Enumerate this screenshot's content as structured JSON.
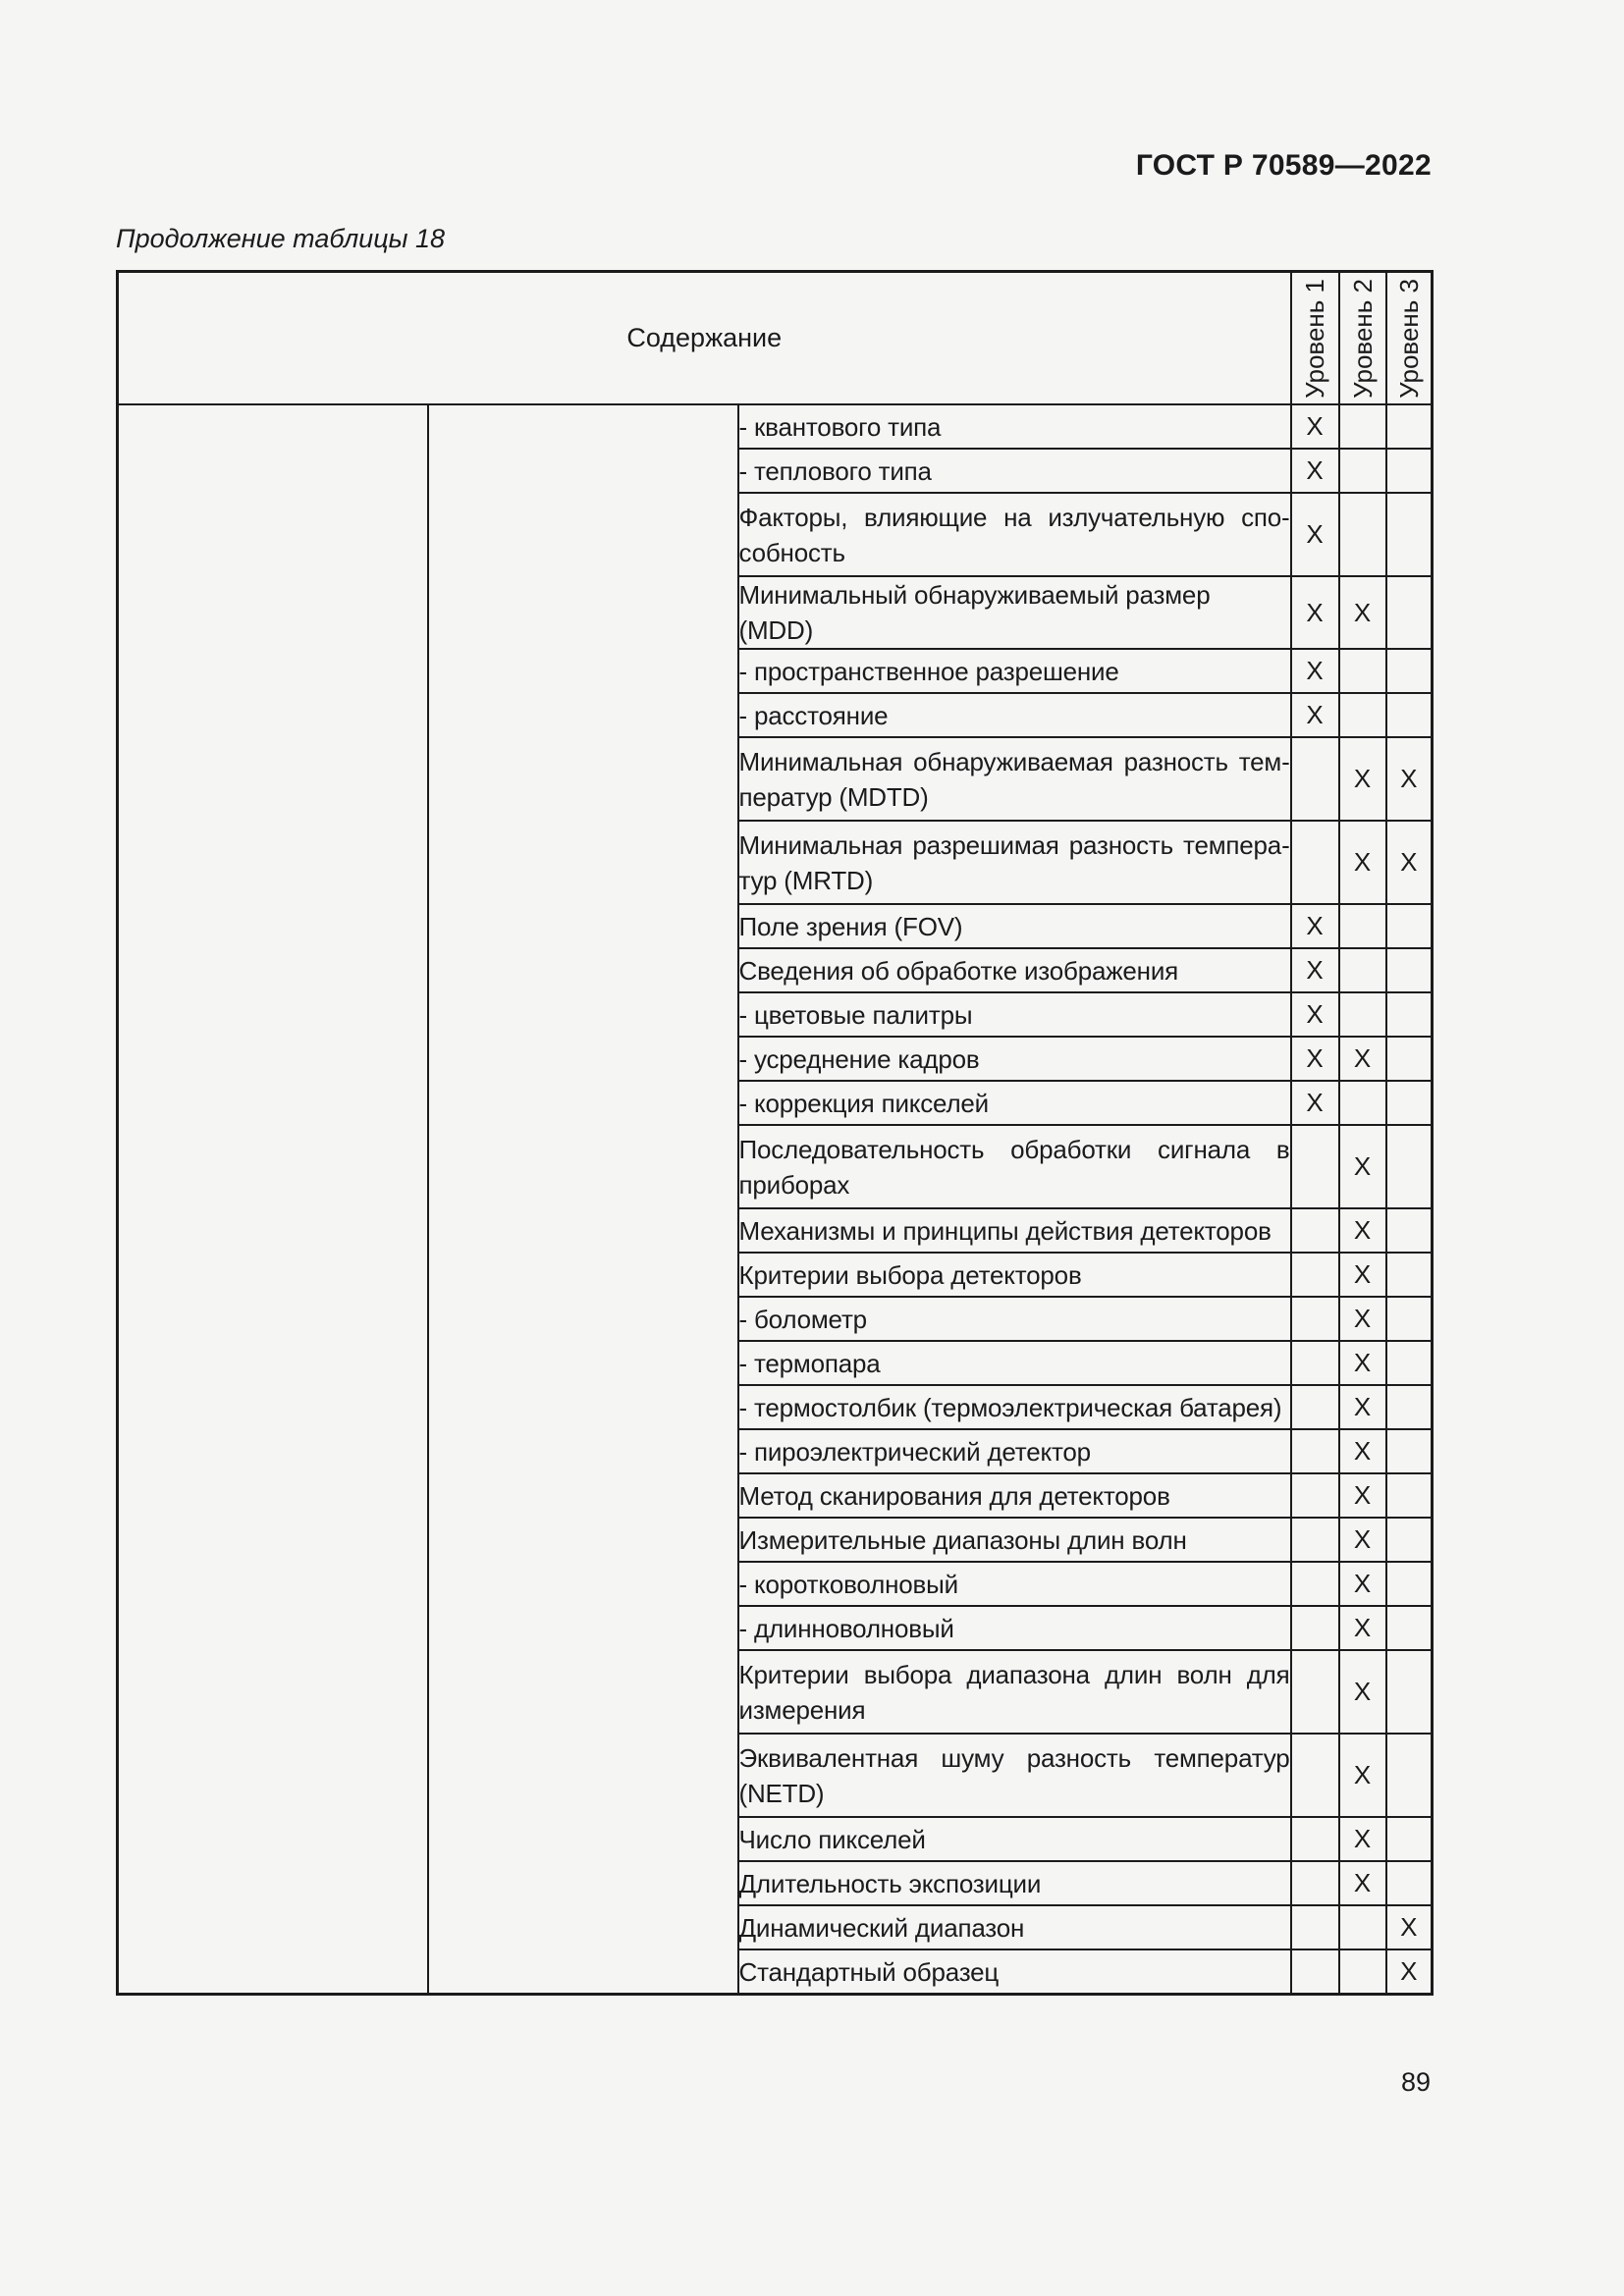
{
  "page": {
    "doc_header": "ГОСТ Р 70589—2022",
    "caption": "Продолжение таблицы 18",
    "page_number": "89"
  },
  "table": {
    "content_header": "Содержание",
    "level_headers": [
      "Уровень 1",
      "Уровень 2",
      "Уровень 3"
    ],
    "mark": "X",
    "rows": [
      {
        "lines": [
          "- квантового типа"
        ],
        "levels": [
          1,
          0,
          0
        ]
      },
      {
        "lines": [
          "- теплового типа"
        ],
        "levels": [
          1,
          0,
          0
        ]
      },
      {
        "lines": [
          "Факторы, влияющие на излучательную спо-",
          "собность"
        ],
        "levels": [
          1,
          0,
          0
        ]
      },
      {
        "lines": [
          "Минимальный обнаруживаемый размер (MDD)"
        ],
        "levels": [
          1,
          1,
          0
        ]
      },
      {
        "lines": [
          "- пространственное разрешение"
        ],
        "levels": [
          1,
          0,
          0
        ]
      },
      {
        "lines": [
          "- расстояние"
        ],
        "levels": [
          1,
          0,
          0
        ]
      },
      {
        "lines": [
          "Минимальная обнаруживаемая разность тем-",
          "ператур (MDTD)"
        ],
        "levels": [
          0,
          1,
          1
        ]
      },
      {
        "lines": [
          "Минимальная разрешимая разность темпера-",
          "тур (MRTD)"
        ],
        "levels": [
          0,
          1,
          1
        ]
      },
      {
        "lines": [
          "Поле зрения (FOV)"
        ],
        "levels": [
          1,
          0,
          0
        ]
      },
      {
        "lines": [
          "Сведения об обработке изображения"
        ],
        "levels": [
          1,
          0,
          0
        ]
      },
      {
        "lines": [
          "- цветовые палитры"
        ],
        "levels": [
          1,
          0,
          0
        ]
      },
      {
        "lines": [
          "- усреднение кадров"
        ],
        "levels": [
          1,
          1,
          0
        ]
      },
      {
        "lines": [
          "- коррекция пикселей"
        ],
        "levels": [
          1,
          0,
          0
        ]
      },
      {
        "lines": [
          "Последовательность обработки сигнала в",
          "приборах"
        ],
        "levels": [
          0,
          1,
          0
        ]
      },
      {
        "lines": [
          "Механизмы и принципы действия детекторов"
        ],
        "levels": [
          0,
          1,
          0
        ]
      },
      {
        "lines": [
          "Критерии выбора детекторов"
        ],
        "levels": [
          0,
          1,
          0
        ]
      },
      {
        "lines": [
          "- болометр"
        ],
        "levels": [
          0,
          1,
          0
        ]
      },
      {
        "lines": [
          "- термопара"
        ],
        "levels": [
          0,
          1,
          0
        ]
      },
      {
        "lines": [
          "- термостолбик (термоэлектрическая батарея)"
        ],
        "levels": [
          0,
          1,
          0
        ]
      },
      {
        "lines": [
          "- пироэлектрический детектор"
        ],
        "levels": [
          0,
          1,
          0
        ]
      },
      {
        "lines": [
          "Метод сканирования для детекторов"
        ],
        "levels": [
          0,
          1,
          0
        ]
      },
      {
        "lines": [
          "Измерительные диапазоны длин волн"
        ],
        "levels": [
          0,
          1,
          0
        ]
      },
      {
        "lines": [
          "- коротковолновый"
        ],
        "levels": [
          0,
          1,
          0
        ]
      },
      {
        "lines": [
          "- длинноволновый"
        ],
        "levels": [
          0,
          1,
          0
        ]
      },
      {
        "lines": [
          "Критерии выбора диапазона длин волн для",
          "измерения"
        ],
        "levels": [
          0,
          1,
          0
        ]
      },
      {
        "lines": [
          "Эквивалентная шуму разность температур",
          "(NETD)"
        ],
        "levels": [
          0,
          1,
          0
        ]
      },
      {
        "lines": [
          "Число пикселей"
        ],
        "levels": [
          0,
          1,
          0
        ]
      },
      {
        "lines": [
          "Длительность экспозиции"
        ],
        "levels": [
          0,
          1,
          0
        ]
      },
      {
        "lines": [
          "Динамический диапазон"
        ],
        "levels": [
          0,
          0,
          1
        ]
      },
      {
        "lines": [
          "Стандартный образец"
        ],
        "levels": [
          0,
          0,
          1
        ]
      }
    ]
  }
}
